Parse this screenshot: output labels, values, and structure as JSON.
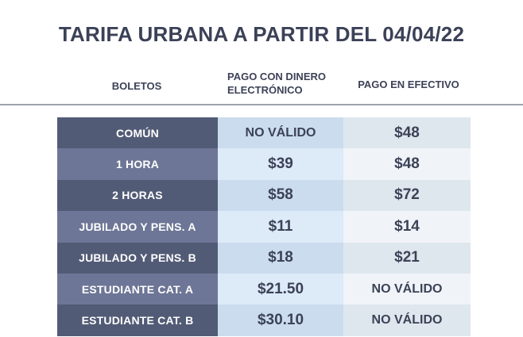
{
  "title": "TARIFA URBANA A PARTIR DEL 04/04/22",
  "headers": {
    "boletos": "BOLETOS",
    "electronico": "PAGO CON DINERO ELECTRÓNICO",
    "efectivo": "PAGO EN EFECTIVO"
  },
  "rows": [
    {
      "label": "COMÚN",
      "electronico": "NO VÁLIDO",
      "efectivo": "$48"
    },
    {
      "label": "1 HORA",
      "electronico": "$39",
      "efectivo": "$48"
    },
    {
      "label": "2 HORAS",
      "electronico": "$58",
      "efectivo": "$72"
    },
    {
      "label": "JUBILADO Y PENS. A",
      "electronico": "$11",
      "efectivo": "$14"
    },
    {
      "label": "JUBILADO Y PENS. B",
      "electronico": "$18",
      "efectivo": "$21"
    },
    {
      "label": "ESTUDIANTE CAT. A",
      "electronico": "$21.50",
      "efectivo": "NO VÁLIDO"
    },
    {
      "label": "ESTUDIANTE CAT. B",
      "electronico": "$30.10",
      "efectivo": "NO VÁLIDO"
    }
  ],
  "colors": {
    "label_dark": "#525b76",
    "label_light": "#6d7696",
    "elec_dark": "#cbdcee",
    "elec_light": "#ddeaf7",
    "efec_dark": "#dfe7ee",
    "efec_light": "#f0f4f8",
    "text": "#3c4257"
  }
}
